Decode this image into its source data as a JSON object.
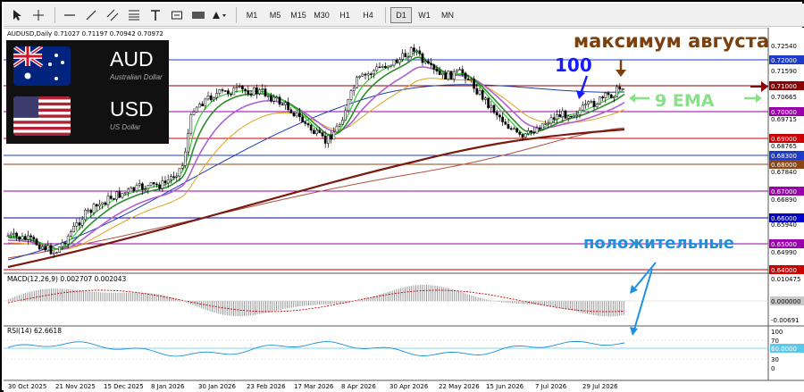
{
  "toolbar": {
    "timeframes": [
      "M1",
      "M5",
      "M15",
      "M30",
      "H1",
      "H4",
      "D1",
      "W1",
      "MN"
    ],
    "active_timeframe": "D1"
  },
  "chart": {
    "header": "AUDUSD,Daily  0.71027 0.71197 0.70942 0.70972",
    "macd_label": "MACD(12,26,9) 0.002707 0.002043",
    "rsi_label": "RSI(14) 62.6618"
  },
  "badge": {
    "base_code": "AUD",
    "base_name": "Australian Dollar",
    "quote_code": "USD",
    "quote_name": "US Dollar"
  },
  "annotations": {
    "august_max": "максимум августа",
    "ema_100": "100",
    "ema_9": "9 EMA",
    "positive": "положительные"
  },
  "price_axis": {
    "ticks": [
      "0.72540",
      "0.71590",
      "0.70665",
      "0.69715",
      "0.68765",
      "0.67840",
      "0.66890",
      "0.65940",
      "0.64990",
      "0.64040"
    ],
    "levels": [
      {
        "label": "0.72000",
        "color": "#1f3cc8"
      },
      {
        "label": "0.71000",
        "color": "#8b0000"
      },
      {
        "label": "0.70000",
        "color": "#9900aa"
      },
      {
        "label": "0.69000",
        "color": "#cc0000"
      },
      {
        "label": "0.68300",
        "color": "#1f3cc8"
      },
      {
        "label": "0.68000",
        "color": "#8b4513"
      },
      {
        "label": "0.67000",
        "color": "#9900aa"
      },
      {
        "label": "0.66000",
        "color": "#0000cc"
      },
      {
        "label": "0.65000",
        "color": "#9900aa"
      },
      {
        "label": "0.64000",
        "color": "#cc0000"
      }
    ]
  },
  "macd_axis": {
    "top": "0.010475",
    "zero": "0.000000",
    "bottom": "-0.00691"
  },
  "rsi_axis": {
    "ticks": [
      "100",
      "70",
      "30",
      "0"
    ],
    "level": "60.0000"
  },
  "date_axis": [
    "30 Oct 2025",
    "21 Nov 2025",
    "15 Dec 2025",
    "8 Jan 2026",
    "30 Jan 2026",
    "23 Feb 2026",
    "17 Mar 2026",
    "8 Apr 2026",
    "30 Apr 2026",
    "22 May 2026",
    "15 Jun 2026",
    "7 Jul 2026",
    "29 Jul 2026"
  ],
  "colors": {
    "ema9": "#33cc33",
    "ema_fast": "#2e8b2e",
    "ema_purple": "#b060d0",
    "ema_orange": "#e0a020",
    "ema100": "#1f3cb0",
    "ema200": "#7a1a10",
    "annotation_brown": "#7a4010",
    "annotation_blue": "#1a1aff",
    "annotation_green": "#88e088",
    "annotation_cyan": "#1e90e0"
  },
  "icons": [
    "cursor-icon",
    "crosshair-icon",
    "hline-icon",
    "trendline-icon",
    "channel-icon",
    "fib-icon",
    "text-icon",
    "label-icon",
    "rect-icon",
    "shapes-icon"
  ]
}
